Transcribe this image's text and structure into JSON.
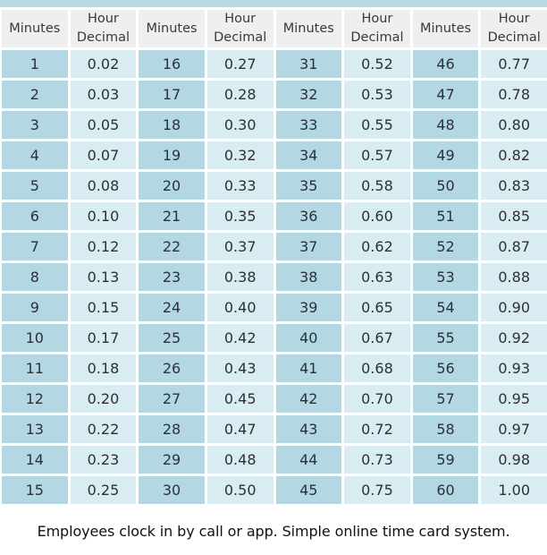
{
  "title_bar": {
    "color": "#b6dae4"
  },
  "colors": {
    "header_bg": "#efefef",
    "minutes_bg": "#b3d8e3",
    "decimal_bg": "#d9ecf2"
  },
  "table": {
    "headers": [
      {
        "line1": "Minutes",
        "line2": ""
      },
      {
        "line1": "Hour",
        "line2": "Decimal"
      },
      {
        "line1": "Minutes",
        "line2": ""
      },
      {
        "line1": "Hour",
        "line2": "Decimal"
      },
      {
        "line1": "Minutes",
        "line2": ""
      },
      {
        "line1": "Hour",
        "line2": "Decimal"
      },
      {
        "line1": "Minutes",
        "line2": ""
      },
      {
        "line1": "Hour",
        "line2": "Decimal"
      }
    ],
    "rows": [
      [
        "1",
        "0.02",
        "16",
        "0.27",
        "31",
        "0.52",
        "46",
        "0.77"
      ],
      [
        "2",
        "0.03",
        "17",
        "0.28",
        "32",
        "0.53",
        "47",
        "0.78"
      ],
      [
        "3",
        "0.05",
        "18",
        "0.30",
        "33",
        "0.55",
        "48",
        "0.80"
      ],
      [
        "4",
        "0.07",
        "19",
        "0.32",
        "34",
        "0.57",
        "49",
        "0.82"
      ],
      [
        "5",
        "0.08",
        "20",
        "0.33",
        "35",
        "0.58",
        "50",
        "0.83"
      ],
      [
        "6",
        "0.10",
        "21",
        "0.35",
        "36",
        "0.60",
        "51",
        "0.85"
      ],
      [
        "7",
        "0.12",
        "22",
        "0.37",
        "37",
        "0.62",
        "52",
        "0.87"
      ],
      [
        "8",
        "0.13",
        "23",
        "0.38",
        "38",
        "0.63",
        "53",
        "0.88"
      ],
      [
        "9",
        "0.15",
        "24",
        "0.40",
        "39",
        "0.65",
        "54",
        "0.90"
      ],
      [
        "10",
        "0.17",
        "25",
        "0.42",
        "40",
        "0.67",
        "55",
        "0.92"
      ],
      [
        "11",
        "0.18",
        "26",
        "0.43",
        "41",
        "0.68",
        "56",
        "0.93"
      ],
      [
        "12",
        "0.20",
        "27",
        "0.45",
        "42",
        "0.70",
        "57",
        "0.95"
      ],
      [
        "13",
        "0.22",
        "28",
        "0.47",
        "43",
        "0.72",
        "58",
        "0.97"
      ],
      [
        "14",
        "0.23",
        "29",
        "0.48",
        "44",
        "0.73",
        "59",
        "0.98"
      ],
      [
        "15",
        "0.25",
        "30",
        "0.50",
        "45",
        "0.75",
        "60",
        "1.00"
      ]
    ]
  },
  "caption": "Employees clock in by call or app. Simple online time card system."
}
